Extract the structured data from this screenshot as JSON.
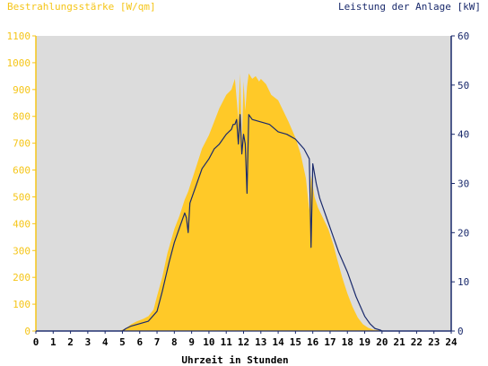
{
  "chart_data": {
    "type": "area",
    "ylabel_left": "Bestrahlungsstärke [W/qm]",
    "ylabel_right": "Leistung der Anlage [kW]",
    "xlabel": "Uhrzeit in Stunden",
    "x_ticks": [
      "0",
      "1",
      "2",
      "3",
      "4",
      "5",
      "6",
      "7",
      "8",
      "9",
      "10",
      "11",
      "12",
      "13",
      "14",
      "15",
      "16",
      "17",
      "18",
      "19",
      "20",
      "21",
      "22",
      "23",
      "24"
    ],
    "y_left_ticks": [
      "0",
      "100",
      "200",
      "300",
      "400",
      "500",
      "600",
      "700",
      "800",
      "900",
      "1000",
      "1100"
    ],
    "y_right_ticks": [
      "0",
      "10",
      "20",
      "30",
      "40",
      "50",
      "60"
    ],
    "xlim": [
      0,
      24
    ],
    "ylim_left": [
      0,
      1100
    ],
    "ylim_right": [
      0,
      60
    ],
    "grid": false,
    "colors": {
      "plot_background": "#dcdcdc",
      "irradiance_fill": "#ffc928",
      "power_line": "#1a2a6c",
      "left_axis": "#f5c518",
      "right_axis": "#1a2a6c"
    },
    "series": [
      {
        "axis": "left",
        "style": "filled-area",
        "x": [
          0,
          4.8,
          5.0,
          5.2,
          5.5,
          5.8,
          6.0,
          6.2,
          6.5,
          6.8,
          7.0,
          7.3,
          7.6,
          8.0,
          8.3,
          8.6,
          8.8,
          9.0,
          9.3,
          9.6,
          10.0,
          10.3,
          10.6,
          11.0,
          11.3,
          11.5,
          11.7,
          11.8,
          11.9,
          12.0,
          12.1,
          12.2,
          12.3,
          12.5,
          12.7,
          12.9,
          13.0,
          13.3,
          13.6,
          14.0,
          14.3,
          14.6,
          15.0,
          15.3,
          15.6,
          15.8,
          15.9,
          16.0,
          16.1,
          16.3,
          16.6,
          16.9,
          17.0,
          17.2,
          17.4,
          17.7,
          18.0,
          18.3,
          18.6,
          18.9,
          19.2,
          19.5,
          19.8,
          20.0,
          20.3,
          20.5,
          24
        ],
        "y": [
          0,
          0,
          5,
          10,
          25,
          35,
          40,
          45,
          55,
          80,
          130,
          200,
          290,
          380,
          430,
          490,
          520,
          560,
          620,
          680,
          730,
          780,
          830,
          880,
          900,
          940,
          790,
          960,
          700,
          930,
          820,
          910,
          960,
          940,
          950,
          930,
          940,
          920,
          880,
          860,
          820,
          780,
          720,
          660,
          570,
          450,
          580,
          540,
          500,
          460,
          420,
          380,
          360,
          320,
          270,
          200,
          140,
          90,
          50,
          25,
          12,
          5,
          3,
          2,
          0,
          0,
          0
        ]
      },
      {
        "axis": "right",
        "style": "line",
        "x": [
          0,
          5.0,
          5.2,
          5.5,
          6.0,
          6.5,
          7.0,
          7.3,
          7.7,
          8.0,
          8.3,
          8.6,
          8.7,
          8.8,
          8.9,
          9.0,
          9.3,
          9.6,
          10.0,
          10.3,
          10.6,
          11.0,
          11.3,
          11.4,
          11.5,
          11.6,
          11.7,
          11.8,
          11.9,
          12.0,
          12.1,
          12.2,
          12.3,
          12.5,
          13.0,
          13.5,
          14.0,
          14.5,
          15.0,
          15.5,
          15.8,
          15.9,
          16.0,
          16.1,
          16.2,
          16.4,
          16.6,
          16.8,
          17.0,
          17.2,
          17.5,
          18.0,
          18.5,
          19.0,
          19.3,
          19.6,
          19.9,
          20.0,
          24
        ],
        "y": [
          0,
          0,
          0.5,
          1,
          1.5,
          2,
          4,
          8,
          14,
          18,
          21,
          24,
          23,
          20,
          26,
          27,
          30,
          33,
          35,
          37,
          38,
          40,
          41,
          42,
          42,
          43,
          38,
          44,
          36,
          40,
          38,
          28,
          44,
          43,
          42.5,
          42,
          40.5,
          40,
          39,
          37,
          35,
          17,
          34,
          32,
          30,
          27,
          25,
          23,
          21,
          19,
          16,
          12,
          7,
          3,
          1.5,
          0.5,
          0.2,
          0,
          0
        ]
      }
    ]
  }
}
